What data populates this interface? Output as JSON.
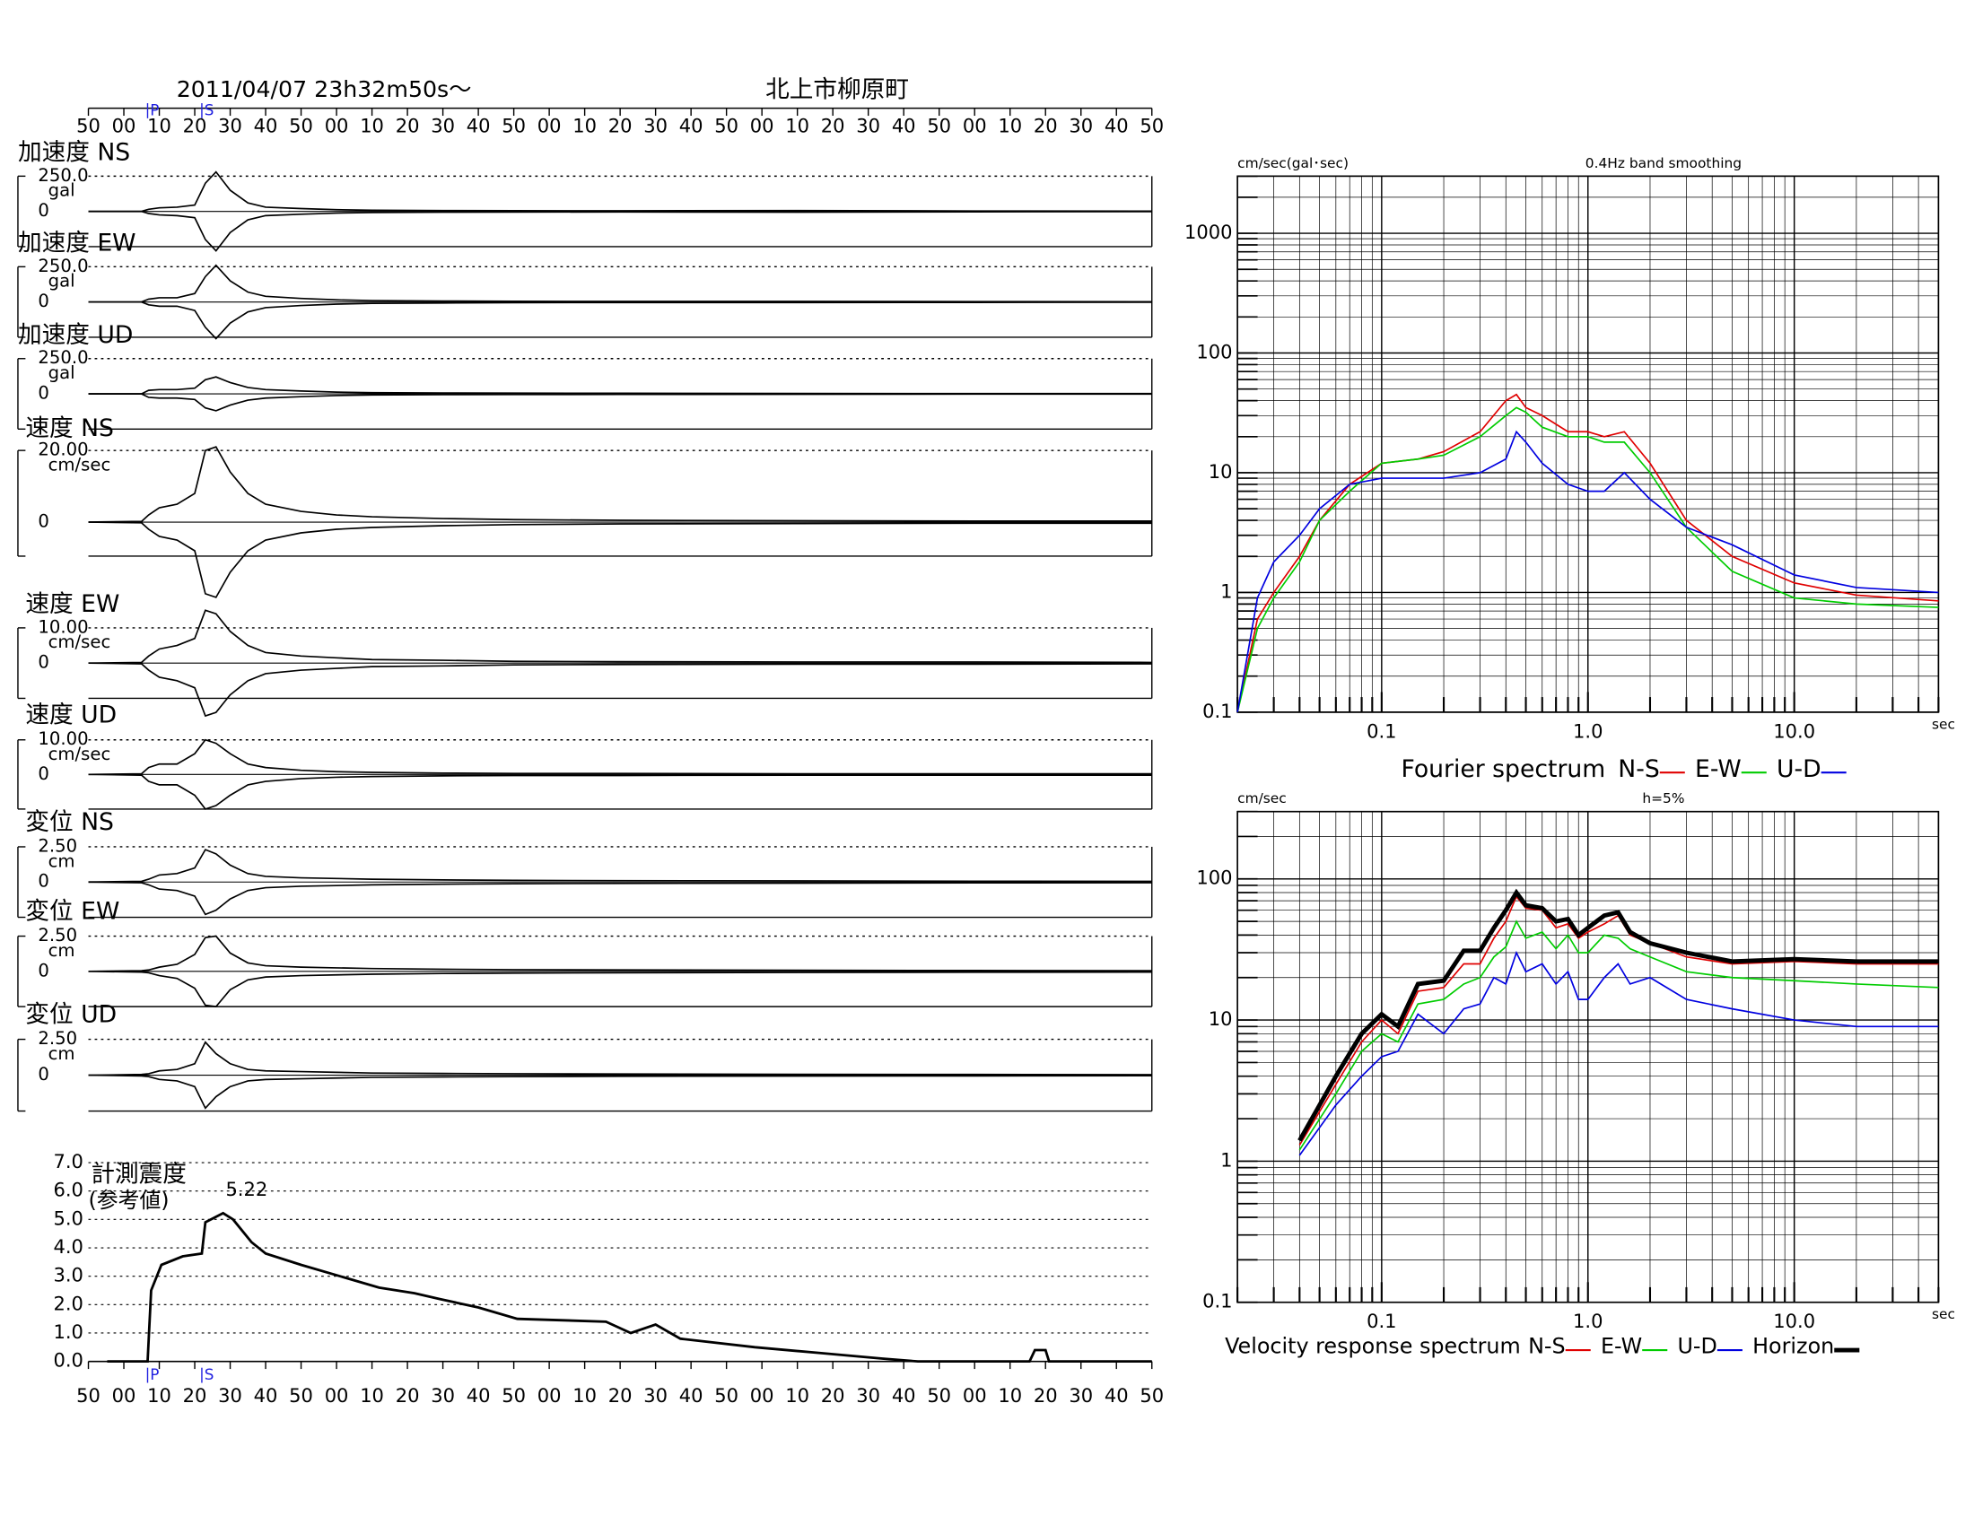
{
  "chart_data": [
    {
      "type": "waveform",
      "title": "2011/04/07  23h32m50s～",
      "subtitle": "北上市柳原町",
      "xlim": [
        0,
        300
      ],
      "xticks": [
        {
          "value": 0,
          "label": "50"
        },
        {
          "value": 10,
          "label": "00"
        },
        {
          "value": 20,
          "label": "10"
        },
        {
          "value": 30,
          "label": "20"
        },
        {
          "value": 40,
          "label": "30"
        },
        {
          "value": 50,
          "label": "40"
        },
        {
          "value": 60,
          "label": "50"
        },
        {
          "value": 70,
          "label": "00"
        },
        {
          "value": 80,
          "label": "10"
        },
        {
          "value": 90,
          "label": "20"
        },
        {
          "value": 100,
          "label": "30"
        },
        {
          "value": 110,
          "label": "40"
        },
        {
          "value": 120,
          "label": "50"
        },
        {
          "value": 130,
          "label": "00"
        },
        {
          "value": 140,
          "label": "10"
        },
        {
          "value": 150,
          "label": "20"
        },
        {
          "value": 160,
          "label": "30"
        },
        {
          "value": 170,
          "label": "40"
        },
        {
          "value": 180,
          "label": "50"
        },
        {
          "value": 190,
          "label": "00"
        },
        {
          "value": 200,
          "label": "10"
        },
        {
          "value": 210,
          "label": "20"
        },
        {
          "value": 220,
          "label": "30"
        },
        {
          "value": 230,
          "label": "40"
        },
        {
          "value": 240,
          "label": "50"
        },
        {
          "value": 250,
          "label": "00"
        },
        {
          "value": 260,
          "label": "10"
        },
        {
          "value": 270,
          "label": "20"
        },
        {
          "value": 280,
          "label": "30"
        },
        {
          "value": 290,
          "label": "40"
        },
        {
          "value": 300,
          "label": "50"
        }
      ],
      "phase_markers": [
        {
          "label": "P",
          "x": 16.7
        },
        {
          "label": "S",
          "x": 32
        }
      ],
      "x": [
        0,
        15,
        17,
        20,
        25,
        30,
        33,
        36,
        40,
        45,
        50,
        60,
        70,
        80,
        100,
        120,
        150,
        200,
        250,
        300
      ],
      "series": [
        {
          "name": "加速度 NS",
          "unit": "gal",
          "ylim": [
            -250,
            250
          ],
          "yticks": [
            {
              "value": 250,
              "label": "250.0"
            },
            0
          ],
          "values": [
            0.5,
            0.5,
            15,
            25,
            30,
            45,
            200,
            280,
            150,
            60,
            30,
            20,
            12,
            8,
            6,
            5,
            4,
            6,
            3,
            2
          ]
        },
        {
          "name": "加速度 EW",
          "unit": "gal",
          "ylim": [
            -250,
            250
          ],
          "yticks": [
            {
              "value": 250,
              "label": "250.0"
            },
            0
          ],
          "values": [
            0.5,
            0.5,
            20,
            30,
            30,
            60,
            180,
            260,
            150,
            70,
            40,
            25,
            15,
            10,
            7,
            5,
            4,
            4,
            3,
            2
          ]
        },
        {
          "name": "加速度 UD",
          "unit": "gal",
          "ylim": [
            -250,
            250
          ],
          "yticks": [
            {
              "value": 250,
              "label": "250.0"
            },
            0
          ],
          "values": [
            0.5,
            0.5,
            25,
            30,
            30,
            40,
            100,
            120,
            80,
            45,
            30,
            20,
            12,
            8,
            6,
            5,
            4,
            3,
            2,
            2
          ]
        },
        {
          "name": "速度 NS",
          "unit": "cm/sec",
          "ylim": [
            -9.5,
            20
          ],
          "yticks": [
            {
              "value": 20,
              "label": "20.00"
            },
            0
          ],
          "values": [
            0,
            0.2,
            2,
            4,
            5,
            8,
            20,
            21,
            14,
            8,
            5,
            3,
            2,
            1.5,
            1,
            0.7,
            0.5,
            0.4,
            0.3,
            0.3
          ]
        },
        {
          "name": "速度 EW",
          "unit": "cm/sec",
          "ylim": [
            -10,
            10
          ],
          "yticks": [
            {
              "value": 10,
              "label": "10.00"
            },
            0
          ],
          "values": [
            0,
            0.2,
            2,
            4,
            5,
            7,
            15,
            14,
            9,
            5,
            3,
            2,
            1.5,
            1,
            0.8,
            0.5,
            0.4,
            0.3,
            0.3,
            0.2
          ]
        },
        {
          "name": "速度 UD",
          "unit": "cm/sec",
          "ylim": [
            -10,
            10
          ],
          "yticks": [
            {
              "value": 10,
              "label": "10.00"
            },
            0
          ],
          "values": [
            0,
            0.2,
            2,
            3,
            3,
            6,
            10,
            9,
            6,
            3,
            2,
            1.2,
            0.8,
            0.6,
            0.4,
            0.3,
            0.3,
            0.2,
            0.2,
            0.2
          ]
        },
        {
          "name": "変位 NS",
          "unit": "cm",
          "ylim": [
            -2.5,
            2.5
          ],
          "yticks": [
            {
              "value": 2.5,
              "label": "2.50"
            },
            0
          ],
          "values": [
            0,
            0.05,
            0.2,
            0.5,
            0.6,
            1,
            2.3,
            2.0,
            1.2,
            0.6,
            0.4,
            0.3,
            0.25,
            0.2,
            0.15,
            0.12,
            0.1,
            0.08,
            0.06,
            0.05
          ]
        },
        {
          "name": "変位 EW",
          "unit": "cm",
          "ylim": [
            -2.5,
            2.5
          ],
          "yticks": [
            {
              "value": 2.5,
              "label": "2.50"
            },
            0
          ],
          "values": [
            0,
            0.05,
            0.1,
            0.3,
            0.5,
            1.2,
            2.4,
            2.5,
            1.3,
            0.6,
            0.4,
            0.3,
            0.25,
            0.2,
            0.15,
            0.12,
            0.1,
            0.08,
            0.06,
            0.05
          ]
        },
        {
          "name": "変位 UD",
          "unit": "cm",
          "ylim": [
            -2.5,
            2.5
          ],
          "yticks": [
            {
              "value": 2.5,
              "label": "2.50"
            },
            0
          ],
          "values": [
            0,
            0.05,
            0.1,
            0.3,
            0.4,
            0.8,
            2.3,
            1.5,
            0.8,
            0.4,
            0.3,
            0.25,
            0.2,
            0.15,
            0.12,
            0.1,
            0.08,
            0.06,
            0.05,
            0.04
          ]
        }
      ]
    },
    {
      "type": "line",
      "title": "計測震度",
      "subtitle": "(参考値)",
      "color": "#000000",
      "xlim": [
        0,
        300
      ],
      "xticks": [
        {
          "value": 0,
          "label": "50"
        },
        {
          "value": 10,
          "label": "00"
        },
        {
          "value": 20,
          "label": "10"
        },
        {
          "value": 30,
          "label": "20"
        },
        {
          "value": 40,
          "label": "30"
        },
        {
          "value": 50,
          "label": "40"
        },
        {
          "value": 60,
          "label": "50"
        },
        {
          "value": 70,
          "label": "00"
        },
        {
          "value": 80,
          "label": "10"
        },
        {
          "value": 90,
          "label": "20"
        },
        {
          "value": 100,
          "label": "30"
        },
        {
          "value": 110,
          "label": "40"
        },
        {
          "value": 120,
          "label": "50"
        },
        {
          "value": 130,
          "label": "00"
        },
        {
          "value": 140,
          "label": "10"
        },
        {
          "value": 150,
          "label": "20"
        },
        {
          "value": 160,
          "label": "30"
        },
        {
          "value": 170,
          "label": "40"
        },
        {
          "value": 180,
          "label": "50"
        },
        {
          "value": 190,
          "label": "00"
        },
        {
          "value": 200,
          "label": "10"
        },
        {
          "value": 210,
          "label": "20"
        },
        {
          "value": 220,
          "label": "30"
        },
        {
          "value": 230,
          "label": "40"
        },
        {
          "value": 240,
          "label": "50"
        },
        {
          "value": 250,
          "label": "00"
        },
        {
          "value": 260,
          "label": "10"
        },
        {
          "value": 270,
          "label": "20"
        },
        {
          "value": 280,
          "label": "30"
        },
        {
          "value": 290,
          "label": "40"
        },
        {
          "value": 300,
          "label": "50"
        }
      ],
      "phase_markers": [
        {
          "label": "P",
          "x": 16.7
        },
        {
          "label": "S",
          "x": 32
        }
      ],
      "ylim": [
        0,
        7
      ],
      "yticks": [
        {
          "value": 0,
          "label": "0.0"
        },
        {
          "value": 1,
          "label": "1.0"
        },
        {
          "value": 2,
          "label": "2.0"
        },
        {
          "value": 3,
          "label": "3.0"
        },
        {
          "value": 4,
          "label": "4.0"
        },
        {
          "value": 5,
          "label": "5.0"
        },
        {
          "value": 6,
          "label": "6.0"
        },
        {
          "value": 7,
          "label": "7.0"
        }
      ],
      "grid": true,
      "x": [
        5.3,
        16.7,
        17.7,
        20.6,
        26.6,
        32,
        33,
        38,
        40.8,
        46,
        50,
        60,
        71,
        82,
        92,
        99,
        110,
        121,
        146,
        153,
        160,
        167,
        188,
        206,
        224,
        234,
        265.5,
        267,
        270,
        271,
        300
      ],
      "values": [
        0,
        0,
        2.5,
        3.4,
        3.7,
        3.8,
        4.9,
        5.22,
        5.0,
        4.2,
        3.8,
        3.4,
        3.0,
        2.6,
        2.4,
        2.2,
        1.9,
        1.5,
        1.4,
        1.0,
        1.3,
        0.8,
        0.5,
        0.3,
        0.1,
        0,
        0,
        0.4,
        0.4,
        0,
        0
      ],
      "peak": {
        "x": 38,
        "value": 5.22
      }
    },
    {
      "type": "loglog",
      "title": "Fourier spectrum",
      "ylabel": "cm/sec(gal･sec)",
      "note": "0.4Hz band smoothing",
      "xlabel": "sec",
      "xscale": "log",
      "yscale": "log",
      "grid": true,
      "xlim": [
        0.02,
        50
      ],
      "ylim": [
        0.1,
        3000
      ],
      "xticks": [
        0.1,
        {
          "value": 1,
          "label": "1.0"
        },
        {
          "value": 10,
          "label": "10.0"
        }
      ],
      "yticks": [
        0.1,
        1,
        10,
        100,
        1000
      ],
      "x": [
        0.02,
        0.025,
        0.03,
        0.04,
        0.05,
        0.07,
        0.1,
        0.15,
        0.2,
        0.3,
        0.4,
        0.45,
        0.5,
        0.6,
        0.8,
        1.0,
        1.2,
        1.5,
        2,
        3,
        5,
        10,
        20,
        50
      ],
      "series": [
        {
          "name": "N-S",
          "color": "#e00000",
          "values": [
            0.1,
            0.6,
            1,
            2,
            4,
            8,
            12,
            13,
            15,
            22,
            40,
            45,
            35,
            30,
            22,
            22,
            20,
            22,
            12,
            4,
            2,
            1.2,
            0.95,
            0.85
          ]
        },
        {
          "name": "E-W",
          "color": "#00cc00",
          "values": [
            0.1,
            0.5,
            0.9,
            1.8,
            4,
            7,
            12,
            13,
            14,
            20,
            30,
            35,
            32,
            24,
            20,
            20,
            18,
            18,
            10,
            3.5,
            1.5,
            0.9,
            0.8,
            0.75
          ]
        },
        {
          "name": "U-D",
          "color": "#0000e0",
          "values": [
            0.1,
            0.9,
            1.8,
            3,
            5,
            8,
            9,
            9,
            9,
            10,
            13,
            22,
            18,
            12,
            8,
            7,
            7,
            10,
            6,
            3.5,
            2.5,
            1.4,
            1.1,
            1.0
          ]
        }
      ]
    },
    {
      "type": "loglog",
      "title": "Velocity response spectrum",
      "ylabel": "cm/sec",
      "note": "h=5%",
      "xlabel": "sec",
      "xscale": "log",
      "yscale": "log",
      "grid": true,
      "xlim": [
        0.02,
        50
      ],
      "ylim": [
        0.1,
        300
      ],
      "xticks": [
        0.1,
        {
          "value": 1,
          "label": "1.0"
        },
        {
          "value": 10,
          "label": "10.0"
        }
      ],
      "yticks": [
        0.1,
        1,
        10,
        100
      ],
      "x": [
        0.04,
        0.06,
        0.08,
        0.1,
        0.12,
        0.15,
        0.2,
        0.25,
        0.3,
        0.35,
        0.4,
        0.45,
        0.5,
        0.6,
        0.7,
        0.8,
        0.9,
        1.0,
        1.2,
        1.4,
        1.6,
        2,
        3,
        5,
        10,
        20,
        50
      ],
      "series": [
        {
          "name": "N-S",
          "color": "#e00000",
          "values": [
            1.3,
            3.5,
            7,
            10,
            8,
            16,
            17,
            25,
            25,
            38,
            50,
            75,
            62,
            60,
            45,
            48,
            38,
            42,
            48,
            55,
            40,
            35,
            28,
            25,
            26,
            25,
            25
          ]
        },
        {
          "name": "E-W",
          "color": "#00cc00",
          "values": [
            1.2,
            3,
            6,
            8,
            7,
            13,
            14,
            18,
            20,
            28,
            33,
            50,
            38,
            42,
            32,
            40,
            30,
            30,
            40,
            38,
            32,
            28,
            22,
            20,
            19,
            18,
            17
          ]
        },
        {
          "name": "U-D",
          "color": "#0000e0",
          "values": [
            1.1,
            2.5,
            4,
            5.5,
            6,
            11,
            8,
            12,
            13,
            20,
            18,
            30,
            22,
            25,
            18,
            22,
            14,
            14,
            20,
            25,
            18,
            20,
            14,
            12,
            10,
            9,
            9
          ]
        },
        {
          "name": "Horizon",
          "color": "#000000",
          "linewidth": 3.5,
          "values": [
            1.4,
            4,
            8,
            11,
            9,
            18,
            19,
            31,
            31,
            45,
            60,
            80,
            65,
            62,
            50,
            52,
            40,
            45,
            55,
            58,
            42,
            35,
            30,
            26,
            27,
            26,
            26
          ]
        }
      ]
    }
  ]
}
